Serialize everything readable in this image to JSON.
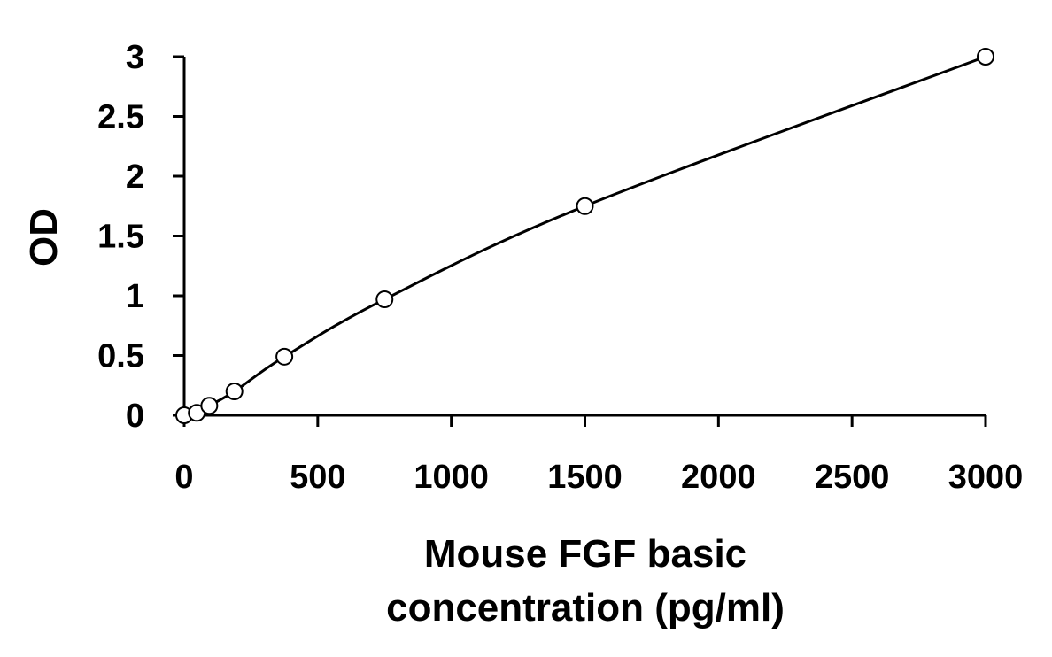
{
  "chart_data": {
    "type": "scatter",
    "title": "",
    "xlabel_lines": [
      "Mouse FGF basic",
      "concentration (pg/ml)"
    ],
    "ylabel": "OD",
    "xlim": [
      0,
      3000
    ],
    "ylim": [
      0,
      3
    ],
    "xticks": [
      0,
      500,
      1000,
      1500,
      2000,
      2500,
      3000
    ],
    "yticks": [
      0,
      0.5,
      1,
      1.5,
      2,
      2.5,
      3
    ],
    "ytick_labels": [
      "0",
      "0.5",
      "1",
      "1.5",
      "2",
      "2.5",
      "3"
    ],
    "grid": false,
    "legend": "none",
    "points": [
      {
        "x": 0,
        "y": 0.0
      },
      {
        "x": 47,
        "y": 0.02
      },
      {
        "x": 94,
        "y": 0.08
      },
      {
        "x": 188,
        "y": 0.2
      },
      {
        "x": 375,
        "y": 0.49
      },
      {
        "x": 750,
        "y": 0.97
      },
      {
        "x": 1500,
        "y": 1.75
      },
      {
        "x": 3000,
        "y": 3.0
      }
    ],
    "fit_curve": "smooth fitted curve through the points"
  }
}
